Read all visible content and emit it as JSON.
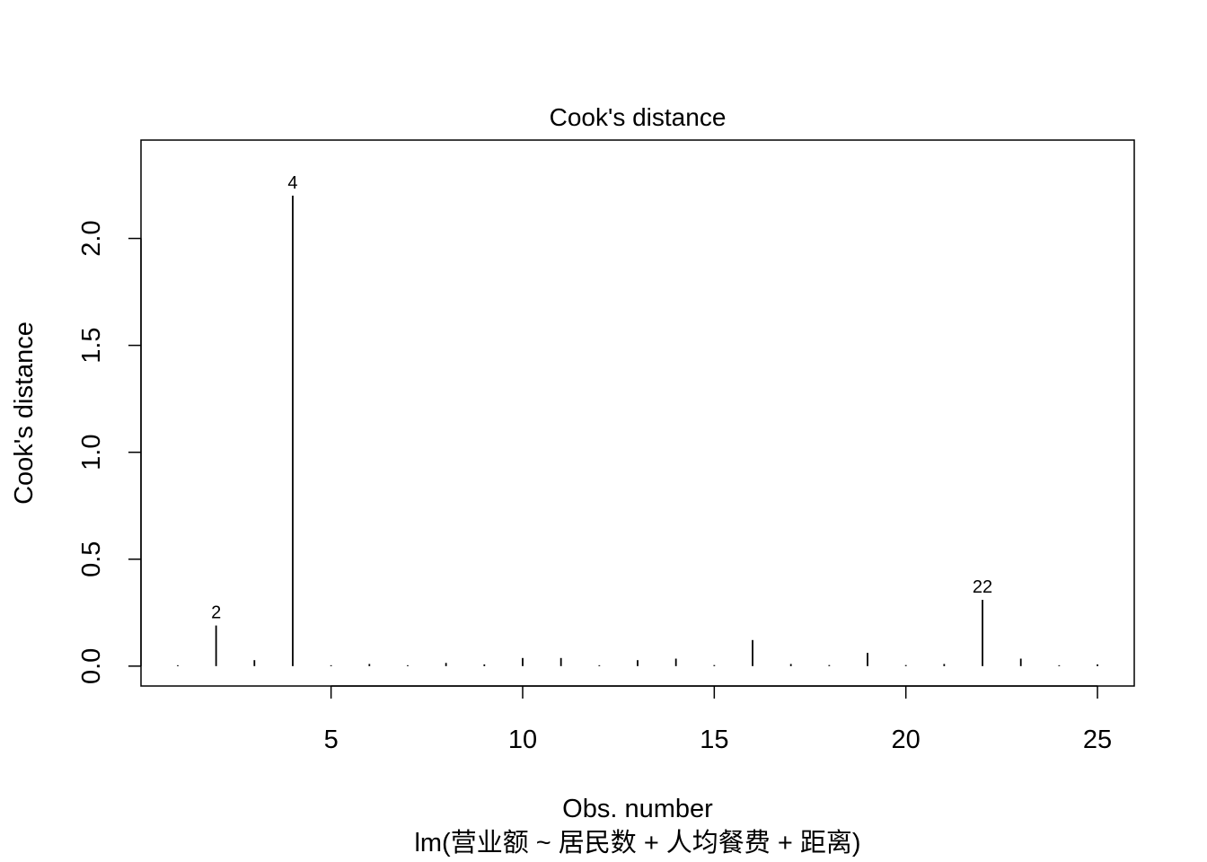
{
  "chart_data": {
    "type": "bar",
    "title": "Cook's distance",
    "xlabel": "Obs. number",
    "ylabel": "Cook's distance",
    "subtitle": "lm(营业额 ~ 居民数 + 人均餐费 + 距离)",
    "xlim": [
      0.04,
      25.96
    ],
    "ylim": [
      -0.093,
      2.46
    ],
    "x_ticks": [
      5,
      10,
      15,
      20,
      25
    ],
    "y_ticks": [
      0.0,
      0.5,
      1.0,
      1.5,
      2.0
    ],
    "x_tick_labels": [
      "5",
      "10",
      "15",
      "20",
      "25"
    ],
    "y_tick_labels": [
      "0.0",
      "0.5",
      "1.0",
      "1.5",
      "2.0"
    ],
    "x": [
      1,
      2,
      3,
      4,
      5,
      6,
      7,
      8,
      9,
      10,
      11,
      12,
      13,
      14,
      15,
      16,
      17,
      18,
      19,
      20,
      21,
      22,
      23,
      24,
      25
    ],
    "values": [
      0.002,
      0.19,
      0.028,
      2.2,
      0.003,
      0.01,
      0.003,
      0.015,
      0.008,
      0.038,
      0.038,
      0.004,
      0.028,
      0.035,
      0.005,
      0.122,
      0.01,
      0.005,
      0.062,
      0.005,
      0.01,
      0.31,
      0.035,
      0.003,
      0.008
    ],
    "annotations": [
      {
        "obs": 2,
        "label": "2"
      },
      {
        "obs": 4,
        "label": "4"
      },
      {
        "obs": 22,
        "label": "22"
      }
    ],
    "grid": false,
    "colors": {
      "line": "#000000",
      "background": "#ffffff"
    }
  }
}
